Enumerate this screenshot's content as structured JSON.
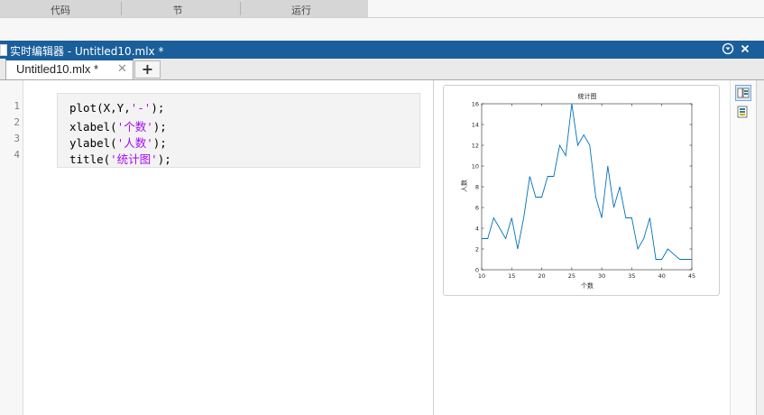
{
  "toolstrip": {
    "sections": [
      "代码",
      "节",
      "运行"
    ]
  },
  "window": {
    "title": "实时编辑器 - Untitled10.mlx *"
  },
  "tabs": [
    {
      "label": "Untitled10.mlx *",
      "active": true
    }
  ],
  "tab_add_label": "+",
  "editor": {
    "line_numbers": [
      "1",
      "2",
      "3",
      "4"
    ],
    "lines": [
      {
        "code": "plot(X,Y,",
        "string": "'-'",
        "tail": ");"
      },
      {
        "code": "xlabel(",
        "string": "'个数'",
        "tail": ");"
      },
      {
        "code": "ylabel(",
        "string": "'人数'",
        "tail": ");"
      },
      {
        "code": "title(",
        "string": "'统计图'",
        "tail": ");"
      }
    ]
  },
  "output": {
    "chart_data": {
      "type": "line",
      "title": "统计图",
      "xlabel": "个数",
      "ylabel": "人数",
      "xlim": [
        10,
        45
      ],
      "ylim": [
        0,
        16
      ],
      "xticks": [
        10,
        15,
        20,
        25,
        30,
        35,
        40,
        45
      ],
      "yticks": [
        0,
        2,
        4,
        6,
        8,
        10,
        12,
        14,
        16
      ],
      "color": "#0072bd",
      "grid": false,
      "x": [
        10,
        11,
        12,
        13,
        14,
        15,
        16,
        17,
        18,
        19,
        20,
        21,
        22,
        23,
        24,
        25,
        26,
        27,
        28,
        29,
        30,
        31,
        32,
        33,
        34,
        35,
        36,
        37,
        38,
        39,
        40,
        41,
        42,
        43,
        44,
        45
      ],
      "y": [
        3,
        3,
        5,
        4,
        3,
        5,
        2,
        5,
        9,
        7,
        7,
        9,
        9,
        12,
        11,
        16,
        12,
        13,
        12,
        7,
        5,
        10,
        6,
        8,
        5,
        5,
        2,
        3,
        5,
        1,
        1,
        2,
        1.5,
        1,
        1,
        1
      ]
    }
  },
  "colors": {
    "titlebar": "#1a5f9c",
    "string_literal": "#a709f5"
  }
}
